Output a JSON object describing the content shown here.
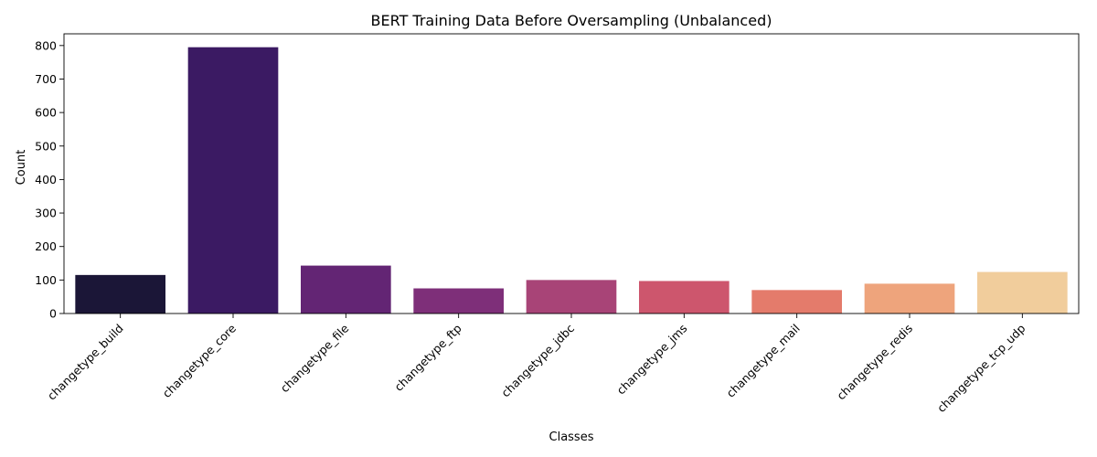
{
  "chart_data": {
    "type": "bar",
    "title": "BERT Training Data Before Oversampling (Unbalanced)",
    "xlabel": "Classes",
    "ylabel": "Count",
    "categories": [
      "changetype_build",
      "changetype_core",
      "changetype_file",
      "changetype_ftp",
      "changetype_jdbc",
      "changetype_jms",
      "changetype_mail",
      "changetype_redis",
      "changetype_tcp_udp"
    ],
    "values": [
      115,
      795,
      143,
      75,
      100,
      97,
      70,
      89,
      124
    ],
    "colors": [
      "#1b1637",
      "#3b1a63",
      "#632574",
      "#7e2f79",
      "#a84477",
      "#cd566d",
      "#e47b6b",
      "#eea47c",
      "#f1cd9c"
    ],
    "ylim": [
      0,
      835
    ],
    "yticks": [
      0,
      100,
      200,
      300,
      400,
      500,
      600,
      700,
      800
    ],
    "grid": false,
    "legend": "none"
  }
}
